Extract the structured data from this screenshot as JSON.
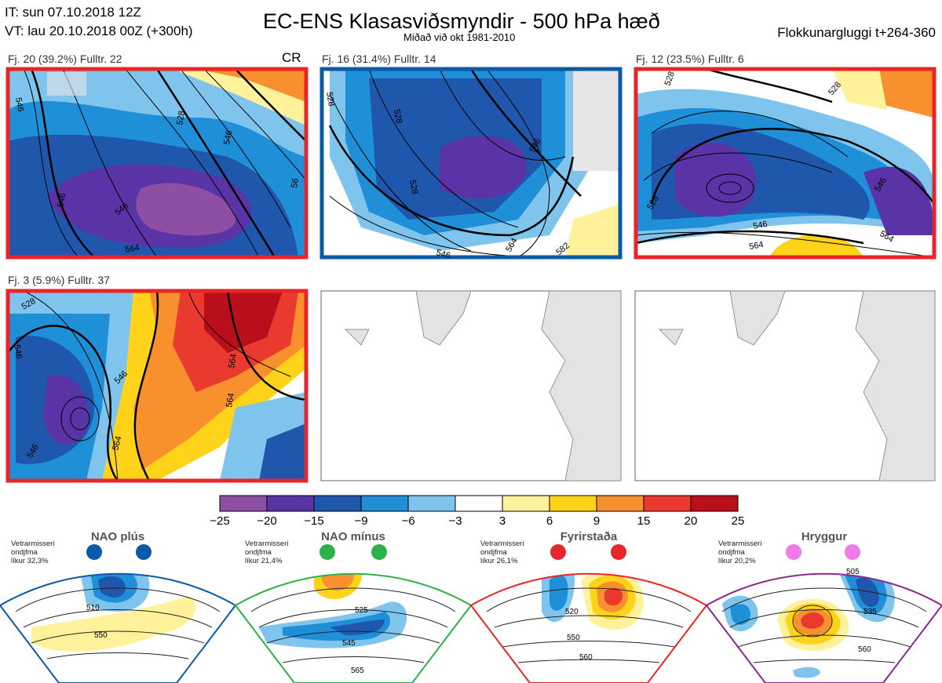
{
  "header": {
    "it_line": "IT: sun 07.10.2018 12Z",
    "vt_line": "VT: lau 20.10.2018 00Z  (+300h)",
    "title": "EC-ENS Klasasviðsmyndir - 500 hPa hæð",
    "subtitle": "Miðað við okt 1981-2010",
    "window": "Flokkunargluggi t+264-360"
  },
  "panels": [
    {
      "label": "Fj. 20 (39.2%)   Fulltr. 22",
      "corner": "CR",
      "border_color": "#e8262a",
      "contours": [
        "546",
        "546",
        "528",
        "546",
        "564",
        "546",
        "56"
      ]
    },
    {
      "label": "Fj. 16 (31.4%)   Fulltr. 14",
      "corner": "",
      "border_color": "#0a5aa8",
      "contours": [
        "528",
        "528",
        "528",
        "546",
        "546",
        "564",
        "582"
      ]
    },
    {
      "label": "Fj. 12 (23.5%)   Fulltr. 6",
      "corner": "",
      "border_color": "#e8262a",
      "contours": [
        "528",
        "528",
        "546",
        "528",
        "546",
        "564",
        "564"
      ]
    },
    {
      "label": "Fj. 3 (5.9%)   Fulltr. 37",
      "corner": "",
      "border_color": "#e8262a",
      "contours": [
        "528",
        "546",
        "546",
        "564",
        "564",
        "564",
        "546"
      ]
    }
  ],
  "colorbar": {
    "ticks": [
      "−25",
      "−20",
      "−15",
      "−9",
      "−6",
      "−3",
      "3",
      "6",
      "9",
      "15",
      "20",
      "25"
    ],
    "colors": [
      "#8c4fa3",
      "#5a34a6",
      "#1f57ad",
      "#1f8fd8",
      "#7fc4ec",
      "#ffffff",
      "#fff29a",
      "#ffd31a",
      "#f8902e",
      "#ea3a30",
      "#b80f1a"
    ]
  },
  "regimes": [
    {
      "name": "NAO plús",
      "meta": "Vetrarmisseri\nondjfma\nlíkur 32,3%",
      "dot_color": "#0a5aa8",
      "frame_color": "#0a5aa8",
      "contours": [
        "510",
        "550"
      ]
    },
    {
      "name": "NAO mínus",
      "meta": "Vetrarmisseri\nondjfma\nlíkur 21,4%",
      "dot_color": "#2eb04a",
      "frame_color": "#2eb04a",
      "contours": [
        "525",
        "545",
        "565"
      ]
    },
    {
      "name": "Fyrirstaða",
      "meta": "Vetrarmisseri\nondjfma\nlíkur 26,1%",
      "dot_color": "#e8262a",
      "frame_color": "#e8262a",
      "contours": [
        "520",
        "550",
        "560"
      ]
    },
    {
      "name": "Hryggur",
      "meta": "Vetrarmisseri\nondjfma\nlíkur 20,2%",
      "dot_color": "#f07be8",
      "frame_color": "#8a2a8f",
      "contours": [
        "505",
        "535",
        "560"
      ]
    }
  ]
}
